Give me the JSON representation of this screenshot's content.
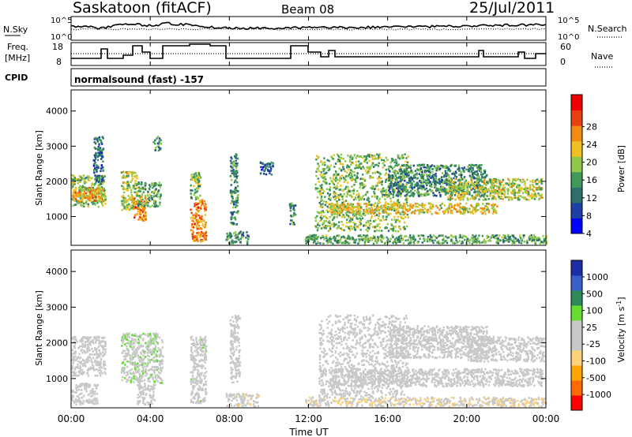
{
  "header": {
    "station": "Saskatoon (fitACF)",
    "beam": "Beam 08",
    "date": "25/Jul/2011"
  },
  "top_panels": {
    "nsky_label": "N.Sky",
    "nsky_ticks": [
      "10^5",
      "10^0"
    ],
    "nsearch_label": "N.Search",
    "freq_label_1": "Freq.",
    "freq_label_2": "[MHz]",
    "freq_ticks": [
      "18",
      "8"
    ],
    "nave_label": "Nave",
    "nave_ticks": [
      "60",
      "0"
    ],
    "cpid_label": "CPID",
    "cpid_value": "normalsound (fast) -157"
  },
  "colors": {
    "power_scale": [
      "#0000ff",
      "#1e3ea8",
      "#2f6f6a",
      "#3f9a5a",
      "#8fc84a",
      "#f0c020",
      "#f08a10",
      "#e84010",
      "#ee0000"
    ],
    "velocity_scale": [
      "#ff0000",
      "#ff6a00",
      "#ffa500",
      "#ffd27a",
      "#c8c8c8",
      "#c8c8c8",
      "#66dd33",
      "#2e8b57",
      "#3b5ec8",
      "#1c2ea6"
    ]
  },
  "chart_data": [
    {
      "type": "heatmap",
      "panel": "power",
      "xlabel": "Time UT",
      "ylabel": "Slant Range [km]",
      "x_ticks": [
        "00:00",
        "04:00",
        "08:00",
        "12:00",
        "16:00",
        "20:00",
        "00:00"
      ],
      "xlim_hours": [
        0,
        24
      ],
      "y_ticks": [
        "1000",
        "2000",
        "3000",
        "4000"
      ],
      "ylim_km": [
        180,
        4600
      ],
      "colorbar_label": "Power [dB]",
      "colorbar_ticks": [
        "4",
        "8",
        "12",
        "16",
        "20",
        "24",
        "28"
      ],
      "colorbar_range": [
        0,
        30
      ],
      "scatter_regions": [
        {
          "t": [
            0.0,
            1.7
          ],
          "r": [
            1300,
            2200
          ],
          "value": 14
        },
        {
          "t": [
            0.0,
            1.6
          ],
          "r": [
            1450,
            1850
          ],
          "value": 20
        },
        {
          "t": [
            1.1,
            1.6
          ],
          "r": [
            2000,
            3300
          ],
          "value": 8
        },
        {
          "t": [
            2.5,
            3.3
          ],
          "r": [
            1200,
            2300
          ],
          "value": 16
        },
        {
          "t": [
            3.1,
            3.8
          ],
          "r": [
            900,
            1600
          ],
          "value": 22
        },
        {
          "t": [
            3.3,
            4.5
          ],
          "r": [
            1300,
            2000
          ],
          "value": 12
        },
        {
          "t": [
            4.1,
            4.5
          ],
          "r": [
            2900,
            3300
          ],
          "value": 10
        },
        {
          "t": [
            6.0,
            6.8
          ],
          "r": [
            300,
            1500
          ],
          "value": 22
        },
        {
          "t": [
            6.0,
            6.5
          ],
          "r": [
            1500,
            2300
          ],
          "value": 14
        },
        {
          "t": [
            7.8,
            9.0
          ],
          "r": [
            250,
            600
          ],
          "value": 10
        },
        {
          "t": [
            8.0,
            8.4
          ],
          "r": [
            800,
            2800
          ],
          "value": 10
        },
        {
          "t": [
            9.5,
            10.2
          ],
          "r": [
            2200,
            2600
          ],
          "value": 8
        },
        {
          "t": [
            11.0,
            11.3
          ],
          "r": [
            800,
            1400
          ],
          "value": 10
        },
        {
          "t": [
            11.8,
            24.0
          ],
          "r": [
            250,
            500
          ],
          "value": 12
        },
        {
          "t": [
            12.3,
            17.0
          ],
          "r": [
            600,
            2800
          ],
          "value": 14
        },
        {
          "t": [
            13.0,
            21.5
          ],
          "r": [
            1100,
            1400
          ],
          "value": 18
        },
        {
          "t": [
            16.0,
            21.0
          ],
          "r": [
            1600,
            2500
          ],
          "value": 10
        },
        {
          "t": [
            19.0,
            23.8
          ],
          "r": [
            1500,
            2100
          ],
          "value": 16
        }
      ]
    },
    {
      "type": "heatmap",
      "panel": "velocity",
      "xlabel": "Time UT",
      "ylabel": "Slant Range [km]",
      "x_ticks": [
        "00:00",
        "04:00",
        "08:00",
        "12:00",
        "16:00",
        "20:00",
        "00:00"
      ],
      "xlim_hours": [
        0,
        24
      ],
      "y_ticks": [
        "1000",
        "2000",
        "3000",
        "4000"
      ],
      "ylim_km": [
        180,
        4600
      ],
      "colorbar_label": "Velocity [m s",
      "colorbar_label_exp": "-1",
      "colorbar_ticks": [
        "1000",
        "500",
        "100",
        "25",
        "-25",
        "-100",
        "-500",
        "-1000"
      ],
      "colorbar_range": [
        -1200,
        1200
      ],
      "scatter_regions": [
        {
          "t": [
            0.0,
            1.7
          ],
          "r": [
            1100,
            2200
          ],
          "value": 0
        },
        {
          "t": [
            0.0,
            1.3
          ],
          "r": [
            300,
            900
          ],
          "value": 10
        },
        {
          "t": [
            2.5,
            4.6
          ],
          "r": [
            900,
            2300
          ],
          "value": 150
        },
        {
          "t": [
            3.3,
            4.2
          ],
          "r": [
            300,
            900
          ],
          "value": 10
        },
        {
          "t": [
            6.0,
            6.8
          ],
          "r": [
            300,
            2200
          ],
          "value": 100
        },
        {
          "t": [
            7.8,
            9.5
          ],
          "r": [
            250,
            600
          ],
          "value": -150
        },
        {
          "t": [
            8.0,
            8.5
          ],
          "r": [
            900,
            2800
          ],
          "value": 0
        },
        {
          "t": [
            11.8,
            24.0
          ],
          "r": [
            250,
            500
          ],
          "value": -200
        },
        {
          "t": [
            12.5,
            17.0
          ],
          "r": [
            500,
            2800
          ],
          "value": 0
        },
        {
          "t": [
            13.0,
            23.8
          ],
          "r": [
            800,
            1300
          ],
          "value": 0
        },
        {
          "t": [
            16.0,
            21.0
          ],
          "r": [
            1600,
            2500
          ],
          "value": 0
        },
        {
          "t": [
            20.0,
            23.9
          ],
          "r": [
            1500,
            2200
          ],
          "value": 0
        }
      ]
    }
  ]
}
